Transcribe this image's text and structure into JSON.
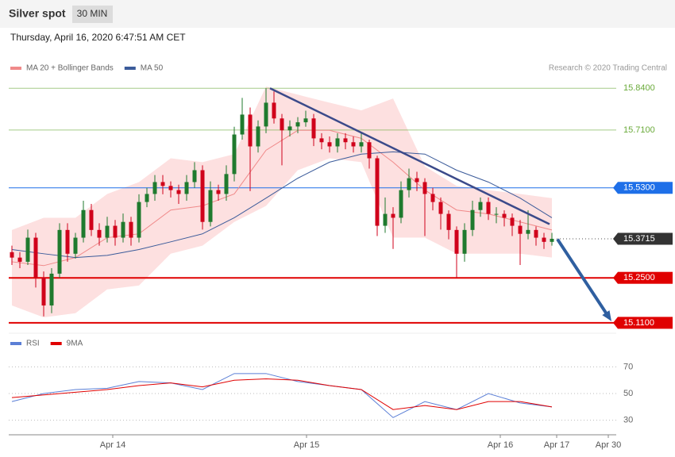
{
  "chart_data": {
    "type": "candlestick",
    "title": "Silver spot",
    "timeframe": "30 MIN",
    "subtitle": "Thursday, April 16, 2020 6:47:51 AM CET",
    "source": "Research © 2020 Trading Central",
    "xlim": [
      -0.4,
      76.1
    ],
    "xticks": [
      {
        "value": 12.7,
        "label": "Apr 14"
      },
      {
        "value": 37.1,
        "label": "Apr 15"
      },
      {
        "value": 61.5,
        "label": "Apr 16"
      },
      {
        "value": 68.6,
        "label": "Apr 17"
      },
      {
        "value": 75.1,
        "label": "Apr 30"
      }
    ],
    "ylim": [
      15.09,
      15.88
    ],
    "candles": {
      "up_color": "#1f7a2e",
      "down_color": "#d0021b",
      "values": [
        [
          15.33,
          15.35,
          15.29,
          15.313
        ],
        [
          15.313,
          15.33,
          15.28,
          15.3
        ],
        [
          15.3,
          15.4,
          15.29,
          15.375
        ],
        [
          15.375,
          15.39,
          15.22,
          15.251
        ],
        [
          15.251,
          15.27,
          15.13,
          15.164
        ],
        [
          15.164,
          15.28,
          15.14,
          15.263
        ],
        [
          15.263,
          15.42,
          15.25,
          15.399
        ],
        [
          15.399,
          15.42,
          15.3,
          15.325
        ],
        [
          15.325,
          15.39,
          15.31,
          15.375
        ],
        [
          15.375,
          15.49,
          15.36,
          15.461
        ],
        [
          15.461,
          15.48,
          15.38,
          15.399
        ],
        [
          15.399,
          15.42,
          15.35,
          15.375
        ],
        [
          15.375,
          15.44,
          15.36,
          15.412
        ],
        [
          15.412,
          15.43,
          15.35,
          15.375
        ],
        [
          15.375,
          15.45,
          15.36,
          15.424
        ],
        [
          15.424,
          15.44,
          15.35,
          15.375
        ],
        [
          15.375,
          15.51,
          15.36,
          15.486
        ],
        [
          15.486,
          15.53,
          15.47,
          15.511
        ],
        [
          15.511,
          15.57,
          15.49,
          15.548
        ],
        [
          15.548,
          15.57,
          15.51,
          15.536
        ],
        [
          15.536,
          15.55,
          15.5,
          15.523
        ],
        [
          15.523,
          15.54,
          15.48,
          15.511
        ],
        [
          15.511,
          15.57,
          15.49,
          15.548
        ],
        [
          15.548,
          15.61,
          15.53,
          15.585
        ],
        [
          15.585,
          15.6,
          15.4,
          15.424
        ],
        [
          15.424,
          15.55,
          15.41,
          15.523
        ],
        [
          15.523,
          15.54,
          15.49,
          15.511
        ],
        [
          15.511,
          15.6,
          15.49,
          15.573
        ],
        [
          15.573,
          15.72,
          15.55,
          15.696
        ],
        [
          15.696,
          15.81,
          15.68,
          15.758
        ],
        [
          15.758,
          15.78,
          15.52,
          15.659
        ],
        [
          15.659,
          15.74,
          15.64,
          15.721
        ],
        [
          15.721,
          15.84,
          15.7,
          15.795
        ],
        [
          15.795,
          15.83,
          15.73,
          15.746
        ],
        [
          15.746,
          15.76,
          15.6,
          15.709
        ],
        [
          15.709,
          15.74,
          15.69,
          15.721
        ],
        [
          15.721,
          15.75,
          15.7,
          15.734
        ],
        [
          15.734,
          15.77,
          15.72,
          15.746
        ],
        [
          15.746,
          15.76,
          15.66,
          15.684
        ],
        [
          15.684,
          15.7,
          15.65,
          15.672
        ],
        [
          15.672,
          15.69,
          15.64,
          15.659
        ],
        [
          15.659,
          15.7,
          15.64,
          15.684
        ],
        [
          15.684,
          15.7,
          15.65,
          15.672
        ],
        [
          15.672,
          15.69,
          15.64,
          15.659
        ],
        [
          15.659,
          15.7,
          15.64,
          15.672
        ],
        [
          15.672,
          15.68,
          15.59,
          15.622
        ],
        [
          15.622,
          15.63,
          15.38,
          15.412
        ],
        [
          15.412,
          15.5,
          15.39,
          15.449
        ],
        [
          15.449,
          15.47,
          15.34,
          15.437
        ],
        [
          15.437,
          15.55,
          15.42,
          15.523
        ],
        [
          15.523,
          15.59,
          15.5,
          15.56
        ],
        [
          15.56,
          15.58,
          15.52,
          15.548
        ],
        [
          15.548,
          15.56,
          15.38,
          15.511
        ],
        [
          15.511,
          15.53,
          15.46,
          15.486
        ],
        [
          15.486,
          15.5,
          15.4,
          15.449
        ],
        [
          15.449,
          15.46,
          15.37,
          15.399
        ],
        [
          15.399,
          15.41,
          15.25,
          15.325
        ],
        [
          15.325,
          15.42,
          15.3,
          15.399
        ],
        [
          15.399,
          15.49,
          15.38,
          15.461
        ],
        [
          15.461,
          15.5,
          15.44,
          15.486
        ],
        [
          15.486,
          15.5,
          15.43,
          15.449
        ],
        [
          15.449,
          15.47,
          15.42,
          15.449
        ],
        [
          15.449,
          15.46,
          15.41,
          15.437
        ],
        [
          15.437,
          15.45,
          15.38,
          15.412
        ],
        [
          15.412,
          15.43,
          15.29,
          15.387
        ],
        [
          15.387,
          15.46,
          15.37,
          15.399
        ],
        [
          15.399,
          15.41,
          15.35,
          15.375
        ],
        [
          15.375,
          15.39,
          15.34,
          15.362
        ],
        [
          15.362,
          15.39,
          15.35,
          15.3715
        ]
      ]
    },
    "series": [
      {
        "name": "MA 20 + Bollinger Bands",
        "color": "#f08a8a",
        "band_color": "#fde0e0",
        "x": [
          0,
          4,
          8,
          12,
          16,
          20,
          24,
          28,
          32,
          36,
          40,
          44,
          48,
          52,
          56,
          60,
          64,
          68
        ],
        "values": [
          15.3,
          15.288,
          15.313,
          15.375,
          15.387,
          15.461,
          15.474,
          15.511,
          15.647,
          15.709,
          15.709,
          15.684,
          15.61,
          15.523,
          15.461,
          15.449,
          15.424,
          15.399
        ],
        "upper": [
          15.399,
          15.437,
          15.437,
          15.511,
          15.548,
          15.622,
          15.61,
          15.635,
          15.845,
          15.82,
          15.795,
          15.771,
          15.808,
          15.597,
          15.536,
          15.523,
          15.511,
          15.498
        ],
        "lower": [
          15.164,
          15.127,
          15.14,
          15.214,
          15.226,
          15.325,
          15.35,
          15.424,
          15.474,
          15.585,
          15.622,
          15.61,
          15.375,
          15.375,
          15.325,
          15.325,
          15.325,
          15.313
        ]
      },
      {
        "name": "MA 50",
        "color": "#3b5b9a",
        "x": [
          0,
          4,
          8,
          12,
          16,
          20,
          24,
          28,
          32,
          36,
          40,
          44,
          48,
          52,
          56,
          60,
          64,
          68
        ],
        "values": [
          15.338,
          15.325,
          15.313,
          15.32,
          15.338,
          15.362,
          15.387,
          15.437,
          15.498,
          15.56,
          15.61,
          15.635,
          15.642,
          15.635,
          15.585,
          15.548,
          15.498,
          15.437
        ]
      }
    ],
    "levels": [
      {
        "value": 15.84,
        "label": "15.8400",
        "color": "#6aaa3a",
        "fill": false,
        "style": "solid"
      },
      {
        "value": 15.71,
        "label": "15.7100",
        "color": "#6aaa3a",
        "fill": false,
        "style": "solid"
      },
      {
        "value": 15.53,
        "label": "15.5300",
        "color": "#1e6fe8",
        "fill": true,
        "style": "solid"
      },
      {
        "value": 15.3715,
        "label": "15.3715",
        "color": "#333333",
        "fill": true,
        "style": "dotted"
      },
      {
        "value": 15.25,
        "label": "15.2500",
        "color": "#e00000",
        "fill": true,
        "style": "thick"
      },
      {
        "value": 15.11,
        "label": "15.1100",
        "color": "#e00000",
        "fill": true,
        "style": "thick"
      }
    ],
    "trendline": {
      "color": "#3b4a8a",
      "x": [
        32.5,
        67.7
      ],
      "values": [
        15.84,
        15.417
      ]
    },
    "arrow": {
      "color": "#2f5fa0",
      "x": [
        68.7,
        75.5
      ],
      "values": [
        15.37,
        15.115
      ]
    },
    "rsi": {
      "ylim": [
        20,
        80
      ],
      "yticks": [
        70,
        50,
        30
      ],
      "series": [
        {
          "name": "RSI",
          "color": "#5b7fd6",
          "x": [
            0,
            4,
            8,
            12,
            16,
            20,
            24,
            28,
            32,
            36,
            40,
            44,
            48,
            52,
            56,
            60,
            64,
            68
          ],
          "values": [
            44,
            50,
            53,
            54,
            59,
            58,
            53,
            65,
            65,
            59,
            56,
            53,
            32,
            44,
            38,
            50,
            43,
            40
          ]
        },
        {
          "name": "9MA",
          "color": "#e00000",
          "x": [
            0,
            4,
            8,
            12,
            16,
            20,
            24,
            28,
            32,
            36,
            40,
            44,
            48,
            52,
            56,
            60,
            64,
            68
          ],
          "values": [
            47,
            49,
            51,
            53,
            56,
            58,
            55,
            60,
            61,
            60,
            56,
            53,
            38,
            41,
            38,
            44,
            44,
            40
          ]
        }
      ]
    }
  }
}
